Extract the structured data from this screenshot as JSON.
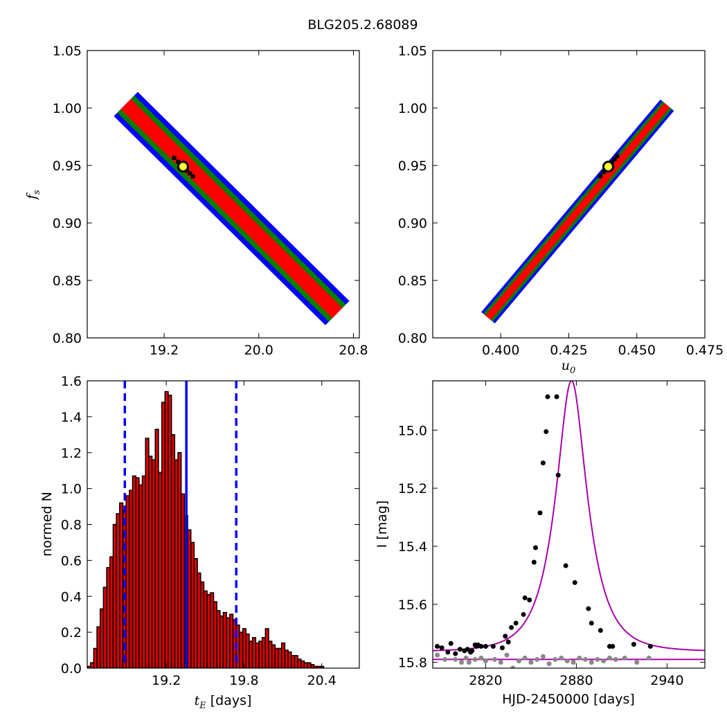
{
  "figure": {
    "title": "BLG205.2.68089"
  },
  "colors": {
    "sigma1": "#ff0000",
    "sigma2": "#007f00",
    "sigma3": "#0000ff",
    "best": "#000000",
    "marker_fill": "#ffff33",
    "hist_fill": "#dd0000",
    "model_line": "#aa00aa",
    "data_primary": "#000000",
    "data_secondary": "#888888"
  },
  "chart_data": [
    {
      "id": "fs-vs-tE",
      "type": "heatmap",
      "title": "",
      "xlabel": "",
      "ylabel_symbol": "f",
      "ylabel_sub": "s",
      "xlim": [
        18.55,
        20.85
      ],
      "ylim": [
        0.8,
        1.05
      ],
      "x_ticks": [
        19.2,
        20.0,
        20.8
      ],
      "x_tick_labels": [
        "19.2",
        "20.0",
        "20.8"
      ],
      "y_ticks": [
        0.8,
        0.85,
        0.9,
        0.95,
        1.0,
        1.05
      ],
      "y_tick_labels": [
        "0.80",
        "0.85",
        "0.90",
        "0.95",
        "1.00",
        "1.05"
      ],
      "band": {
        "start": [
          18.88,
          1.003
        ],
        "end": [
          20.66,
          0.822
        ],
        "half_widths": {
          "sigma1": 0.008,
          "sigma2": 0.014,
          "sigma3": 0.02
        }
      },
      "best_fit_marker": [
        19.36,
        0.949
      ]
    },
    {
      "id": "fs-vs-u0",
      "type": "heatmap",
      "title": "",
      "xlabel_symbol": "u",
      "xlabel_sub": "0",
      "ylabel": "",
      "xlim": [
        0.375,
        0.475
      ],
      "ylim": [
        0.8,
        1.05
      ],
      "x_ticks": [
        0.4,
        0.425,
        0.45,
        0.475
      ],
      "x_tick_labels": [
        "0.400",
        "0.425",
        "0.450",
        "0.475"
      ],
      "y_ticks": [
        0.8,
        0.85,
        0.9,
        0.95,
        1.0,
        1.05
      ],
      "y_tick_labels": [
        "0.80",
        "0.85",
        "0.90",
        "0.95",
        "1.00",
        "1.05"
      ],
      "band": {
        "start": [
          0.3955,
          0.818
        ],
        "end": [
          0.461,
          1.002
        ],
        "half_widths": {
          "sigma1": 0.0038,
          "sigma2": 0.0075,
          "sigma3": 0.011
        }
      },
      "best_fit_marker": [
        0.4395,
        0.949
      ]
    },
    {
      "id": "tE-histogram",
      "type": "bar",
      "title": "",
      "xlabel_symbol": "t",
      "xlabel_sub": "E",
      "xlabel_rest": " [days]",
      "ylabel": "normed N",
      "xlim": [
        18.59,
        20.69
      ],
      "ylim": [
        0.0,
        1.6
      ],
      "x_ticks": [
        19.2,
        19.8,
        20.4
      ],
      "x_tick_labels": [
        "19.2",
        "19.8",
        "20.4"
      ],
      "y_ticks": [
        0.0,
        0.2,
        0.4,
        0.6,
        0.8,
        1.0,
        1.2,
        1.4,
        1.6
      ],
      "y_tick_labels": [
        "0.0",
        "0.2",
        "0.4",
        "0.6",
        "0.8",
        "1.0",
        "1.2",
        "1.4",
        "1.6"
      ],
      "bin_start": 18.59,
      "bin_width": 0.025,
      "values": [
        0.01,
        0.03,
        0.11,
        0.23,
        0.33,
        0.45,
        0.56,
        0.62,
        0.8,
        0.86,
        0.92,
        0.88,
        0.96,
        0.99,
        1.07,
        1.06,
        1.02,
        1.07,
        1.28,
        1.18,
        1.16,
        1.33,
        1.09,
        1.48,
        1.54,
        1.52,
        1.3,
        1.16,
        1.2,
        0.97,
        0.85,
        0.77,
        0.7,
        0.61,
        0.53,
        0.48,
        0.43,
        0.41,
        0.42,
        0.37,
        0.32,
        0.29,
        0.31,
        0.28,
        0.3,
        0.27,
        0.24,
        0.2,
        0.22,
        0.19,
        0.15,
        0.17,
        0.14,
        0.15,
        0.17,
        0.22,
        0.15,
        0.13,
        0.11,
        0.11,
        0.14,
        0.1,
        0.09,
        0.07,
        0.07,
        0.05,
        0.04,
        0.03,
        0.03,
        0.02,
        0.01,
        0.01,
        0.01,
        0.0,
        0.0,
        0.0,
        0.0,
        0.0,
        0.0,
        0.0,
        0.0,
        0.0,
        0.0,
        0.0
      ],
      "median_line": 19.355,
      "percentile_lines": [
        18.88,
        19.74
      ]
    },
    {
      "id": "light-curve",
      "type": "line",
      "title": "",
      "xlabel": "HJD-2450000 [days]",
      "ylabel": "I [mag]",
      "xlim": [
        2785,
        2965
      ],
      "ylim": [
        15.82,
        14.83
      ],
      "y_inverted": true,
      "x_ticks": [
        2820,
        2880,
        2940
      ],
      "x_tick_labels": [
        "2820",
        "2880",
        "2940"
      ],
      "y_ticks": [
        15.0,
        15.2,
        15.4,
        15.6,
        15.8
      ],
      "y_tick_labels": [
        "15.0",
        "15.2",
        "15.4",
        "15.6",
        "15.8"
      ],
      "model": {
        "t0": 2876.8,
        "tE": 19.36,
        "u0": 0.4395,
        "baseline": 15.763,
        "fs": 0.949
      },
      "baseline_model": 15.79,
      "series": [
        {
          "role": "primary",
          "x": [
            2788,
            2791,
            2795,
            2797,
            2800,
            2803,
            2806,
            2808,
            2810,
            2811,
            2813,
            2814,
            2815,
            2817,
            2820,
            2825,
            2831,
            2833,
            2835,
            2837,
            2840,
            2845,
            2846,
            2849,
            2852,
            2853,
            2856,
            2858,
            2860,
            2861,
            2867,
            2868,
            2873,
            2879,
            2888,
            2890,
            2896,
            2902,
            2904,
            2918,
            2929
          ],
          "y": [
            15.745,
            15.75,
            15.765,
            15.735,
            15.77,
            15.755,
            15.76,
            15.755,
            15.765,
            15.76,
            15.74,
            15.745,
            15.74,
            15.745,
            15.745,
            15.745,
            15.75,
            15.71,
            15.73,
            15.68,
            15.665,
            15.635,
            15.578,
            15.585,
            15.455,
            15.405,
            15.285,
            15.113,
            15.005,
            14.885,
            14.885,
            15.155,
            15.467,
            15.525,
            15.615,
            15.665,
            15.69,
            15.745,
            15.745,
            15.738,
            15.745
          ]
        },
        {
          "role": "secondary",
          "x": [
            2788,
            2793,
            2800,
            2804,
            2807,
            2809,
            2813,
            2817,
            2820,
            2826,
            2830,
            2834,
            2838,
            2842,
            2846,
            2850,
            2854,
            2858,
            2862,
            2866,
            2870,
            2874,
            2878,
            2882,
            2886,
            2890,
            2894,
            2898,
            2902,
            2906,
            2912,
            2920,
            2928
          ],
          "y": [
            15.775,
            15.79,
            15.79,
            15.8,
            15.785,
            15.8,
            15.79,
            15.785,
            15.795,
            15.79,
            15.8,
            15.775,
            15.82,
            15.795,
            15.785,
            15.8,
            15.79,
            15.78,
            15.805,
            15.79,
            15.785,
            15.795,
            15.8,
            15.785,
            15.79,
            15.8,
            15.79,
            15.795,
            15.785,
            15.79,
            15.785,
            15.8,
            15.785
          ]
        }
      ]
    }
  ]
}
